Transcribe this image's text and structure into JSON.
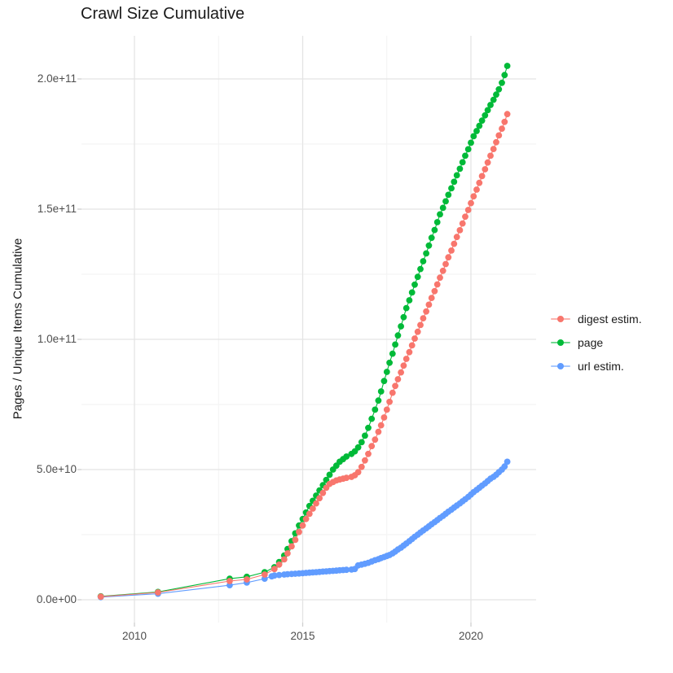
{
  "title": "Crawl Size Cumulative",
  "axes": {
    "y_label": "Pages / Unique Items Cumulative",
    "y_ticks": [
      "0.0e+00",
      "5.0e+10",
      "1.0e+11",
      "1.5e+11",
      "2.0e+11"
    ],
    "x_ticks": [
      "2010",
      "2015",
      "2020"
    ]
  },
  "legend": [
    {
      "label": "digest estim.",
      "color": "#F8766D"
    },
    {
      "label": "page",
      "color": "#00BA38"
    },
    {
      "label": "url estim.",
      "color": "#619CFF"
    }
  ],
  "chart_data": {
    "type": "scatter",
    "title": "Crawl Size Cumulative",
    "xlabel": "",
    "ylabel": "Pages / Unique Items Cumulative",
    "x_range": [
      2008.4,
      2021.9
    ],
    "y_range": [
      0,
      205000000000.0
    ],
    "x_major_ticks": [
      2010,
      2015,
      2020
    ],
    "x_minor_ticks": [
      2012.5,
      2017.5
    ],
    "y_major_ticks": [
      0,
      50000000000.0,
      100000000000.0,
      150000000000.0,
      200000000000.0
    ],
    "y_minor_ticks": [
      25000000000.0,
      75000000000.0,
      125000000000.0,
      175000000000.0
    ],
    "grid": true,
    "legend_position": "right",
    "marker_with_line": true,
    "series": [
      {
        "name": "digest estim.",
        "color": "#F8766D",
        "points": [
          [
            2009.0,
            1200000000.0
          ],
          [
            2010.7,
            2800000000.0
          ],
          [
            2012.83,
            7200000000.0
          ],
          [
            2013.34,
            7800000000.0
          ],
          [
            2013.87,
            9700000000.0
          ],
          [
            2014.16,
            11800000000.0
          ],
          [
            2014.3,
            13500000000.0
          ],
          [
            2014.45,
            15500000000.0
          ],
          [
            2014.55,
            17800000000.0
          ],
          [
            2014.67,
            20500000000.0
          ],
          [
            2014.78,
            23000000000.0
          ],
          [
            2014.89,
            26000000000.0
          ],
          [
            2015.0,
            28500000000.0
          ],
          [
            2015.1,
            31000000000.0
          ],
          [
            2015.2,
            33000000000.0
          ],
          [
            2015.3,
            35000000000.0
          ],
          [
            2015.4,
            37000000000.0
          ],
          [
            2015.5,
            39000000000.0
          ],
          [
            2015.6,
            41000000000.0
          ],
          [
            2015.7,
            43000000000.0
          ],
          [
            2015.8,
            44500000000.0
          ],
          [
            2015.9,
            45200000000.0
          ],
          [
            2016.0,
            45800000000.0
          ],
          [
            2016.1,
            46200000000.0
          ],
          [
            2016.2,
            46500000000.0
          ],
          [
            2016.3,
            46800000000.0
          ],
          [
            2016.45,
            47200000000.0
          ],
          [
            2016.55,
            47800000000.0
          ],
          [
            2016.65,
            49000000000.0
          ],
          [
            2016.75,
            51000000000.0
          ],
          [
            2016.85,
            53500000000.0
          ],
          [
            2016.95,
            56000000000.0
          ],
          [
            2017.05,
            59000000000.0
          ],
          [
            2017.15,
            61500000000.0
          ],
          [
            2017.25,
            64500000000.0
          ],
          [
            2017.33,
            67000000000.0
          ],
          [
            2017.42,
            70000000000.0
          ],
          [
            2017.5,
            73000000000.0
          ],
          [
            2017.58,
            76000000000.0
          ],
          [
            2017.67,
            79500000000.0
          ],
          [
            2017.75,
            82100000000.0
          ],
          [
            2017.83,
            84700000000.0
          ],
          [
            2017.92,
            87300000000.0
          ],
          [
            2018.0,
            89900000000.0
          ],
          [
            2018.08,
            92500000000.0
          ],
          [
            2018.17,
            95100000000.0
          ],
          [
            2018.25,
            97700000000.0
          ],
          [
            2018.33,
            100300000000.0
          ],
          [
            2018.42,
            102900000000.0
          ],
          [
            2018.5,
            105500000000.0
          ],
          [
            2018.58,
            108100000000.0
          ],
          [
            2018.67,
            110700000000.0
          ],
          [
            2018.75,
            113300000000.0
          ],
          [
            2018.83,
            115900000000.0
          ],
          [
            2018.92,
            118500000000.0
          ],
          [
            2019.0,
            121100000000.0
          ],
          [
            2019.08,
            123700000000.0
          ],
          [
            2019.17,
            126300000000.0
          ],
          [
            2019.25,
            128900000000.0
          ],
          [
            2019.33,
            131500000000.0
          ],
          [
            2019.42,
            134100000000.0
          ],
          [
            2019.5,
            136700000000.0
          ],
          [
            2019.58,
            139300000000.0
          ],
          [
            2019.67,
            141900000000.0
          ],
          [
            2019.75,
            144500000000.0
          ],
          [
            2019.83,
            147100000000.0
          ],
          [
            2019.92,
            149700000000.0
          ],
          [
            2020.0,
            152300000000.0
          ],
          [
            2020.08,
            154900000000.0
          ],
          [
            2020.17,
            157500000000.0
          ],
          [
            2020.25,
            160100000000.0
          ],
          [
            2020.33,
            162700000000.0
          ],
          [
            2020.42,
            165300000000.0
          ],
          [
            2020.5,
            167900000000.0
          ],
          [
            2020.58,
            170500000000.0
          ],
          [
            2020.67,
            173100000000.0
          ],
          [
            2020.75,
            175700000000.0
          ],
          [
            2020.83,
            178300000000.0
          ],
          [
            2020.92,
            180900000000.0
          ],
          [
            2021.0,
            183500000000.0
          ],
          [
            2021.08,
            186500000000.0
          ]
        ]
      },
      {
        "name": "page",
        "color": "#00BA38",
        "points": [
          [
            2009.0,
            1300000000.0
          ],
          [
            2010.7,
            3000000000.0
          ],
          [
            2012.83,
            8100000000.0
          ],
          [
            2013.34,
            8800000000.0
          ],
          [
            2013.87,
            10600000000.0
          ],
          [
            2014.16,
            12500000000.0
          ],
          [
            2014.3,
            14500000000.0
          ],
          [
            2014.45,
            17000000000.0
          ],
          [
            2014.55,
            19500000000.0
          ],
          [
            2014.67,
            22500000000.0
          ],
          [
            2014.78,
            25500000000.0
          ],
          [
            2014.89,
            28500000000.0
          ],
          [
            2015.0,
            31000000000.0
          ],
          [
            2015.1,
            33500000000.0
          ],
          [
            2015.2,
            36000000000.0
          ],
          [
            2015.3,
            38000000000.0
          ],
          [
            2015.4,
            40000000000.0
          ],
          [
            2015.5,
            42000000000.0
          ],
          [
            2015.6,
            44000000000.0
          ],
          [
            2015.7,
            46000000000.0
          ],
          [
            2015.8,
            48000000000.0
          ],
          [
            2015.9,
            50000000000.0
          ],
          [
            2016.0,
            51500000000.0
          ],
          [
            2016.1,
            53000000000.0
          ],
          [
            2016.2,
            54000000000.0
          ],
          [
            2016.3,
            55000000000.0
          ],
          [
            2016.45,
            56000000000.0
          ],
          [
            2016.55,
            57000000000.0
          ],
          [
            2016.65,
            58500000000.0
          ],
          [
            2016.75,
            60500000000.0
          ],
          [
            2016.85,
            63000000000.0
          ],
          [
            2016.95,
            66000000000.0
          ],
          [
            2017.05,
            69500000000.0
          ],
          [
            2017.15,
            73000000000.0
          ],
          [
            2017.25,
            76500000000.0
          ],
          [
            2017.33,
            80000000000.0
          ],
          [
            2017.42,
            84000000000.0
          ],
          [
            2017.5,
            87500000000.0
          ],
          [
            2017.58,
            91000000000.0
          ],
          [
            2017.67,
            94500000000.0
          ],
          [
            2017.75,
            98000000000.0
          ],
          [
            2017.83,
            101500000000.0
          ],
          [
            2017.92,
            105000000000.0
          ],
          [
            2018.0,
            108500000000.0
          ],
          [
            2018.08,
            112000000000.0
          ],
          [
            2018.17,
            115000000000.0
          ],
          [
            2018.25,
            118000000000.0
          ],
          [
            2018.33,
            121000000000.0
          ],
          [
            2018.42,
            124000000000.0
          ],
          [
            2018.5,
            127000000000.0
          ],
          [
            2018.58,
            130000000000.0
          ],
          [
            2018.67,
            133000000000.0
          ],
          [
            2018.75,
            136000000000.0
          ],
          [
            2018.83,
            139000000000.0
          ],
          [
            2018.92,
            142000000000.0
          ],
          [
            2019.0,
            145000000000.0
          ],
          [
            2019.08,
            148000000000.0
          ],
          [
            2019.17,
            150500000000.0
          ],
          [
            2019.25,
            153000000000.0
          ],
          [
            2019.33,
            155500000000.0
          ],
          [
            2019.42,
            158000000000.0
          ],
          [
            2019.5,
            160500000000.0
          ],
          [
            2019.58,
            163000000000.0
          ],
          [
            2019.67,
            165500000000.0
          ],
          [
            2019.75,
            168000000000.0
          ],
          [
            2019.83,
            170500000000.0
          ],
          [
            2019.92,
            173000000000.0
          ],
          [
            2020.0,
            175500000000.0
          ],
          [
            2020.08,
            178000000000.0
          ],
          [
            2020.17,
            180000000000.0
          ],
          [
            2020.25,
            182000000000.0
          ],
          [
            2020.33,
            184000000000.0
          ],
          [
            2020.42,
            186000000000.0
          ],
          [
            2020.5,
            188000000000.0
          ],
          [
            2020.58,
            190000000000.0
          ],
          [
            2020.67,
            192000000000.0
          ],
          [
            2020.75,
            194000000000.0
          ],
          [
            2020.83,
            196000000000.0
          ],
          [
            2020.92,
            198500000000.0
          ],
          [
            2021.0,
            201500000000.0
          ],
          [
            2021.08,
            205000000000.0
          ]
        ]
      },
      {
        "name": "url estim.",
        "color": "#619CFF",
        "points": [
          [
            2009.0,
            1000000000.0
          ],
          [
            2010.7,
            2300000000.0
          ],
          [
            2012.83,
            5600000000.0
          ],
          [
            2013.34,
            6600000000.0
          ],
          [
            2013.87,
            8100000000.0
          ],
          [
            2014.08,
            9000000000.0
          ],
          [
            2014.16,
            9300000000.0
          ],
          [
            2014.3,
            9500000000.0
          ],
          [
            2014.45,
            9700000000.0
          ],
          [
            2014.55,
            9800000000.0
          ],
          [
            2014.67,
            9900000000.0
          ],
          [
            2014.78,
            10000000000.0
          ],
          [
            2014.89,
            10100000000.0
          ],
          [
            2015.0,
            10200000000.0
          ],
          [
            2015.1,
            10300000000.0
          ],
          [
            2015.2,
            10400000000.0
          ],
          [
            2015.3,
            10500000000.0
          ],
          [
            2015.4,
            10600000000.0
          ],
          [
            2015.5,
            10700000000.0
          ],
          [
            2015.6,
            10800000000.0
          ],
          [
            2015.7,
            10900000000.0
          ],
          [
            2015.8,
            11000000000.0
          ],
          [
            2015.9,
            11100000000.0
          ],
          [
            2016.0,
            11200000000.0
          ],
          [
            2016.1,
            11300000000.0
          ],
          [
            2016.2,
            11400000000.0
          ],
          [
            2016.3,
            11500000000.0
          ],
          [
            2016.45,
            11600000000.0
          ],
          [
            2016.55,
            11800000000.0
          ],
          [
            2016.65,
            13200000000.0
          ],
          [
            2016.75,
            13500000000.0
          ],
          [
            2016.85,
            13800000000.0
          ],
          [
            2016.95,
            14200000000.0
          ],
          [
            2017.05,
            14700000000.0
          ],
          [
            2017.15,
            15200000000.0
          ],
          [
            2017.25,
            15600000000.0
          ],
          [
            2017.33,
            16000000000.0
          ],
          [
            2017.42,
            16400000000.0
          ],
          [
            2017.5,
            16800000000.0
          ],
          [
            2017.58,
            17200000000.0
          ],
          [
            2017.67,
            17800000000.0
          ],
          [
            2017.75,
            18500000000.0
          ],
          [
            2017.83,
            19300000000.0
          ],
          [
            2017.92,
            20000000000.0
          ],
          [
            2018.0,
            20800000000.0
          ],
          [
            2018.08,
            21600000000.0
          ],
          [
            2018.17,
            22500000000.0
          ],
          [
            2018.25,
            23300000000.0
          ],
          [
            2018.33,
            24200000000.0
          ],
          [
            2018.42,
            25000000000.0
          ],
          [
            2018.5,
            25800000000.0
          ],
          [
            2018.58,
            26600000000.0
          ],
          [
            2018.67,
            27400000000.0
          ],
          [
            2018.75,
            28200000000.0
          ],
          [
            2018.83,
            29000000000.0
          ],
          [
            2018.92,
            29800000000.0
          ],
          [
            2019.0,
            30600000000.0
          ],
          [
            2019.08,
            31400000000.0
          ],
          [
            2019.17,
            32200000000.0
          ],
          [
            2019.25,
            33000000000.0
          ],
          [
            2019.33,
            33800000000.0
          ],
          [
            2019.42,
            34600000000.0
          ],
          [
            2019.5,
            35400000000.0
          ],
          [
            2019.58,
            36200000000.0
          ],
          [
            2019.67,
            37000000000.0
          ],
          [
            2019.75,
            37800000000.0
          ],
          [
            2019.83,
            38600000000.0
          ],
          [
            2019.92,
            39500000000.0
          ],
          [
            2020.0,
            40400000000.0
          ],
          [
            2020.08,
            41300000000.0
          ],
          [
            2020.17,
            42200000000.0
          ],
          [
            2020.25,
            43000000000.0
          ],
          [
            2020.33,
            43800000000.0
          ],
          [
            2020.42,
            44700000000.0
          ],
          [
            2020.5,
            45600000000.0
          ],
          [
            2020.58,
            46500000000.0
          ],
          [
            2020.67,
            47200000000.0
          ],
          [
            2020.75,
            48000000000.0
          ],
          [
            2020.83,
            49000000000.0
          ],
          [
            2020.92,
            50000000000.0
          ],
          [
            2021.0,
            51200000000.0
          ],
          [
            2021.08,
            53000000000.0
          ]
        ]
      }
    ]
  }
}
